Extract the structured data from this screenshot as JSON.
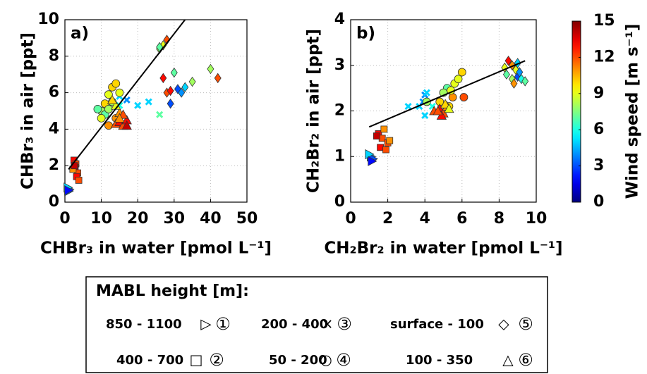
{
  "chart_data": [
    {
      "type": "scatter",
      "panel_label": "a)",
      "x_label": "CHBr₃ in water [pmol L⁻¹]",
      "y_label": "CHBr₃ in air [ppt]",
      "xlim": [
        0,
        50
      ],
      "ylim": [
        0,
        10
      ],
      "xticks": [
        0,
        10,
        20,
        30,
        40,
        50
      ],
      "yticks": [
        0,
        2,
        4,
        6,
        8,
        10
      ],
      "grid": true,
      "fit": {
        "x": [
          1,
          33
        ],
        "values": [
          1.8,
          10
        ]
      },
      "series": [
        {
          "marker": "triangle-right",
          "x": [
            1,
            1.2,
            0.8,
            1
          ],
          "values": [
            0.6,
            0.7,
            0.8,
            0.65
          ],
          "wind_speed": [
            4,
            3,
            5,
            2
          ]
        },
        {
          "marker": "square",
          "x": [
            2.5,
            3,
            2.8,
            3.5,
            3.2,
            2.2,
            3.8,
            2.6
          ],
          "values": [
            2.3,
            2.1,
            1.9,
            1.6,
            1.4,
            1.8,
            1.2,
            2.0
          ],
          "wind_speed": [
            13,
            12,
            14,
            12,
            13,
            11,
            12,
            14
          ]
        },
        {
          "marker": "cross",
          "x": [
            15,
            20,
            23,
            26,
            17,
            15
          ],
          "values": [
            5.3,
            5.3,
            5.5,
            4.8,
            5.6,
            5.8
          ],
          "wind_speed": [
            6,
            5,
            5,
            7,
            4,
            5
          ]
        },
        {
          "marker": "circle",
          "x": [
            10,
            11,
            12,
            13,
            14,
            12,
            13,
            10,
            11,
            9,
            15,
            14,
            12
          ],
          "values": [
            5.0,
            4.8,
            5.9,
            6.3,
            6.5,
            4.2,
            5.5,
            4.6,
            5.4,
            5.1,
            6.0,
            4.6,
            5.1
          ],
          "wind_speed": [
            8,
            7,
            9,
            10,
            10,
            11,
            8,
            9,
            10,
            7,
            9,
            11,
            8
          ]
        },
        {
          "marker": "diamond",
          "x": [
            26,
            27,
            28,
            28,
            27,
            29,
            29,
            31,
            32,
            30,
            35,
            40,
            42,
            33,
            26
          ],
          "values": [
            8.4,
            8.6,
            8.9,
            6.0,
            6.8,
            6.1,
            5.4,
            6.2,
            6.0,
            7.1,
            6.6,
            7.3,
            6.8,
            6.3,
            8.5
          ],
          "wind_speed": [
            8,
            9,
            12,
            12,
            13,
            13,
            3,
            3,
            4,
            7,
            8,
            8,
            12,
            5,
            7
          ]
        },
        {
          "marker": "triangle-up",
          "x": [
            14,
            15,
            16,
            17,
            15,
            14,
            13,
            16,
            17,
            15
          ],
          "values": [
            4.3,
            4.4,
            4.2,
            4.5,
            4.9,
            5.3,
            5.6,
            4.8,
            4.2,
            4.6
          ],
          "wind_speed": [
            12,
            13,
            12,
            13,
            11,
            9,
            10,
            12,
            14,
            11
          ]
        }
      ]
    },
    {
      "type": "scatter",
      "panel_label": "b)",
      "x_label": "CH₂Br₂ in water [pmol L⁻¹]",
      "y_label": "CH₂Br₂ in air [ppt]",
      "xlim": [
        0,
        10
      ],
      "ylim": [
        0,
        4
      ],
      "xticks": [
        0,
        2,
        4,
        6,
        8,
        10
      ],
      "yticks": [
        0,
        1,
        2,
        3,
        4
      ],
      "grid": true,
      "fit": {
        "x": [
          1,
          9.4
        ],
        "values": [
          1.65,
          3.1
        ]
      },
      "series": [
        {
          "marker": "triangle-right",
          "x": [
            1.1,
            1.2,
            1.0,
            1.15
          ],
          "values": [
            1.0,
            0.95,
            1.05,
            0.9
          ],
          "wind_speed": [
            4,
            3,
            5,
            2
          ]
        },
        {
          "marker": "square",
          "x": [
            1.5,
            1.7,
            1.8,
            2.0,
            1.6,
            1.9,
            1.4,
            2.1
          ],
          "values": [
            1.5,
            1.4,
            1.6,
            1.3,
            1.2,
            1.15,
            1.45,
            1.35
          ],
          "wind_speed": [
            13,
            12,
            11,
            12,
            13,
            12,
            14,
            11
          ]
        },
        {
          "marker": "cross",
          "x": [
            3.1,
            3.7,
            4.0,
            4.1,
            3.9,
            4.4,
            4.0
          ],
          "values": [
            2.1,
            2.1,
            2.35,
            2.4,
            2.2,
            2.1,
            1.9
          ],
          "wind_speed": [
            5,
            5,
            4,
            5,
            4,
            6,
            5
          ]
        },
        {
          "marker": "circle",
          "x": [
            4.1,
            5.2,
            5.6,
            5.8,
            6.0,
            5.5,
            6.1,
            5.3,
            5.0,
            5.4,
            4.8
          ],
          "values": [
            2.2,
            2.5,
            2.6,
            2.7,
            2.85,
            2.3,
            2.3,
            2.1,
            2.4,
            2.45,
            2.2
          ],
          "wind_speed": [
            8,
            7,
            9,
            9,
            10,
            11,
            12,
            10,
            8,
            9,
            10
          ]
        },
        {
          "marker": "diamond",
          "x": [
            8.5,
            8.7,
            8.9,
            9.0,
            8.4,
            8.7,
            9.2,
            9.4,
            9.1,
            8.3,
            8.8,
            9.0
          ],
          "values": [
            3.1,
            3.0,
            2.9,
            2.75,
            2.8,
            2.7,
            2.7,
            2.65,
            2.85,
            2.95,
            2.6,
            3.05
          ],
          "wind_speed": [
            13,
            11,
            9,
            3,
            7,
            8,
            6,
            7,
            4,
            9,
            11,
            5
          ]
        },
        {
          "marker": "triangle-up",
          "x": [
            4.5,
            4.8,
            5.0,
            5.2,
            4.9,
            5.1,
            5.3,
            4.7
          ],
          "values": [
            2.0,
            2.05,
            1.95,
            2.1,
            1.9,
            2.15,
            2.05,
            2.0
          ],
          "wind_speed": [
            12,
            13,
            12,
            11,
            13,
            10,
            9,
            12
          ]
        }
      ]
    }
  ],
  "colorbar": {
    "label": "Wind speed [m s⁻¹]",
    "lim": [
      0,
      15
    ],
    "ticks": [
      0,
      3,
      6,
      9,
      12,
      15
    ],
    "colormap": "jet"
  },
  "legend": {
    "title": "MABL height [m]:",
    "entries": [
      {
        "label": "850 - 1100",
        "symbol": "▷",
        "number": "①"
      },
      {
        "label": "400 - 700",
        "symbol": "□",
        "number": "②"
      },
      {
        "label": "200 - 400",
        "symbol": "×",
        "number": "③"
      },
      {
        "label": "50 - 200",
        "symbol": "○",
        "number": "④"
      },
      {
        "label": "surface - 100",
        "symbol": "◇",
        "number": "⑤"
      },
      {
        "label": "100 - 350",
        "symbol": "△",
        "number": "⑥"
      }
    ]
  }
}
